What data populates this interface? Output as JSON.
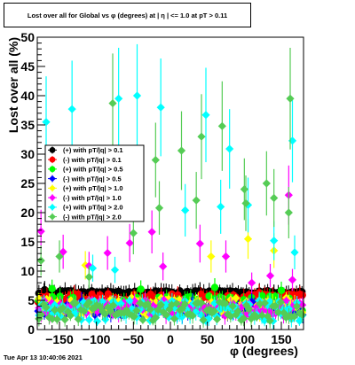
{
  "chart_data": {
    "type": "scatter",
    "title": "Lost over all for Global vs φ (degrees) at | η | <= 1.0 at pT > 0.11",
    "xlabel": "φ (degrees)",
    "ylabel": "Lost over all (%)",
    "xlim": [
      -180,
      180
    ],
    "ylim": [
      0,
      50
    ],
    "x_ticks": [
      -150,
      -100,
      -50,
      0,
      50,
      100,
      150
    ],
    "x_tick_labels": [
      "−150",
      "−100",
      "−50",
      "0",
      "50",
      "100",
      "150"
    ],
    "y_ticks": [
      0,
      5,
      10,
      15,
      20,
      25,
      30,
      35,
      40,
      45,
      50
    ],
    "y_tick_labels": [
      "0",
      "5",
      "10",
      "15",
      "20",
      "25",
      "30",
      "35",
      "40",
      "45",
      "50"
    ],
    "grid": false,
    "legend_position": "middle-left",
    "series": [
      {
        "name": "(+) with pT/|q| > 0.1",
        "color": "#000000",
        "marker": "circle",
        "baseline": 6.4,
        "noise": 0.25,
        "highlights": [
          [
            -170,
            6.8
          ],
          [
            -60,
            6.0
          ],
          [
            40,
            6.6
          ],
          [
            140,
            6.2
          ]
        ]
      },
      {
        "name": "(-) with pT/|q| > 0.1",
        "color": "#ff0000",
        "marker": "circle",
        "baseline": 5.3,
        "noise": 0.8,
        "highlights": [
          [
            -130,
            6.1
          ],
          [
            10,
            5.9
          ],
          [
            120,
            6.3
          ]
        ]
      },
      {
        "name": "(+) with pT/|q| > 0.5",
        "color": "#00ff00",
        "marker": "circle",
        "baseline": 4.4,
        "noise": 1.4,
        "highlights": [
          [
            -160,
            7.0
          ],
          [
            -40,
            6.9
          ],
          [
            60,
            7.2
          ],
          [
            150,
            6.7
          ]
        ]
      },
      {
        "name": "(-) with pT/|q| > 0.5",
        "color": "#0000ff",
        "marker": "diamond",
        "baseline": 3.4,
        "noise": 1.0,
        "highlights": [
          [
            -120,
            4.9
          ],
          [
            30,
            4.7
          ],
          [
            110,
            4.8
          ]
        ]
      },
      {
        "name": "(+) with pT/|q| > 1.0",
        "color": "#ffff00",
        "marker": "diamond",
        "baseline": 4.0,
        "noise": 1.5,
        "highlights": [
          [
            -115,
            11.0
          ],
          [
            55,
            12.5
          ],
          [
            105,
            15.5
          ],
          [
            140,
            13.5
          ]
        ]
      },
      {
        "name": "(-) with pT/|q| > 1.0",
        "color": "#ff00ff",
        "marker": "diamond",
        "baseline": 3.7,
        "noise": 1.4,
        "highlights": [
          [
            -175,
            16.8
          ],
          [
            -145,
            13.3
          ],
          [
            -110,
            10.9
          ],
          [
            -85,
            13.1
          ],
          [
            -55,
            14.8
          ],
          [
            -25,
            16.7
          ],
          [
            -10,
            10.8
          ],
          [
            40,
            14.7
          ],
          [
            75,
            12.5
          ],
          [
            110,
            8.0
          ],
          [
            135,
            9.2
          ],
          [
            160,
            23.0
          ],
          [
            165,
            8.5
          ]
        ]
      },
      {
        "name": "(+) with pT/|q| > 2.0",
        "color": "#00ffff",
        "marker": "diamond",
        "baseline": 3.2,
        "noise": 1.8,
        "highlights": [
          [
            -168,
            35.5
          ],
          [
            -133,
            37.7
          ],
          [
            -105,
            10.5
          ],
          [
            -70,
            39.5
          ],
          [
            -75,
            10.2
          ],
          [
            -45,
            40.0
          ],
          [
            -13,
            38.0
          ],
          [
            20,
            20.4
          ],
          [
            48,
            36.7
          ],
          [
            68,
            21.0
          ],
          [
            80,
            30.9
          ],
          [
            105,
            21.3
          ],
          [
            140,
            15.2
          ],
          [
            165,
            32.3
          ],
          [
            168,
            13.2
          ]
        ]
      },
      {
        "name": "(-) with pT/|q| > 2.0",
        "color": "#55cc55",
        "marker": "diamond",
        "baseline": 3.1,
        "noise": 1.6,
        "highlights": [
          [
            -175,
            11.8
          ],
          [
            -150,
            12.5
          ],
          [
            -110,
            9.0
          ],
          [
            -78,
            38.7
          ],
          [
            -50,
            16.5
          ],
          [
            -20,
            29.0
          ],
          [
            -15,
            20.8
          ],
          [
            15,
            30.6
          ],
          [
            35,
            22.1
          ],
          [
            42,
            33.0
          ],
          [
            70,
            34.8
          ],
          [
            100,
            24.0
          ],
          [
            102,
            21.6
          ],
          [
            130,
            25.0
          ],
          [
            140,
            22.5
          ],
          [
            160,
            20.0
          ],
          [
            162,
            39.5
          ]
        ]
      }
    ]
  },
  "footer_text": "Tue Apr 13 10:40:06 2021"
}
